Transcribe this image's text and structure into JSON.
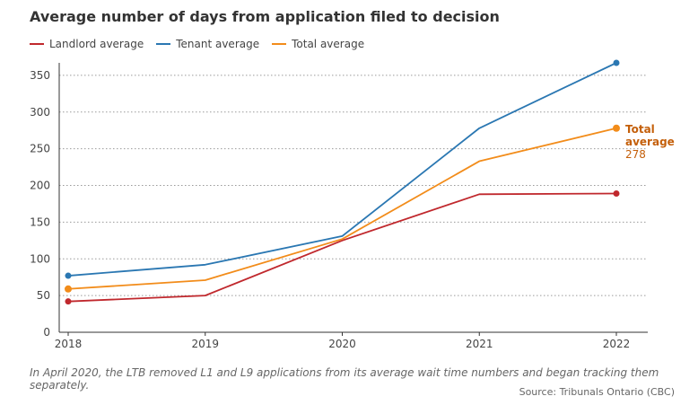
{
  "title": "Average number of days from application filed to decision",
  "footnote": "In April 2020, the LTB removed L1 and L9 applications from its average wait time numbers and began tracking them separately.",
  "source": "Source: Tribunals Ontario (CBC)",
  "colors": {
    "landlord": "#c0282d",
    "tenant": "#2a77b2",
    "total": "#f28c1a",
    "total_label": "#c45f0a"
  },
  "chart_data": {
    "type": "line",
    "x": [
      "2018",
      "2019",
      "2020",
      "2021",
      "2022"
    ],
    "ylim": [
      0,
      370
    ],
    "yticks": [
      "0",
      "50",
      "100",
      "150",
      "200",
      "250",
      "300",
      "350"
    ],
    "grid": true,
    "legend_position": "top-left",
    "series": [
      {
        "name": "Landlord average",
        "key": "landlord",
        "values": [
          42,
          50,
          125,
          188,
          189
        ]
      },
      {
        "name": "Tenant average",
        "key": "tenant",
        "values": [
          77,
          92,
          131,
          278,
          367
        ]
      },
      {
        "name": "Total average",
        "key": "total",
        "values": [
          59,
          71,
          127,
          233,
          278
        ]
      }
    ],
    "annotation": {
      "line1": "Total",
      "line2": "average",
      "value": "278"
    }
  }
}
